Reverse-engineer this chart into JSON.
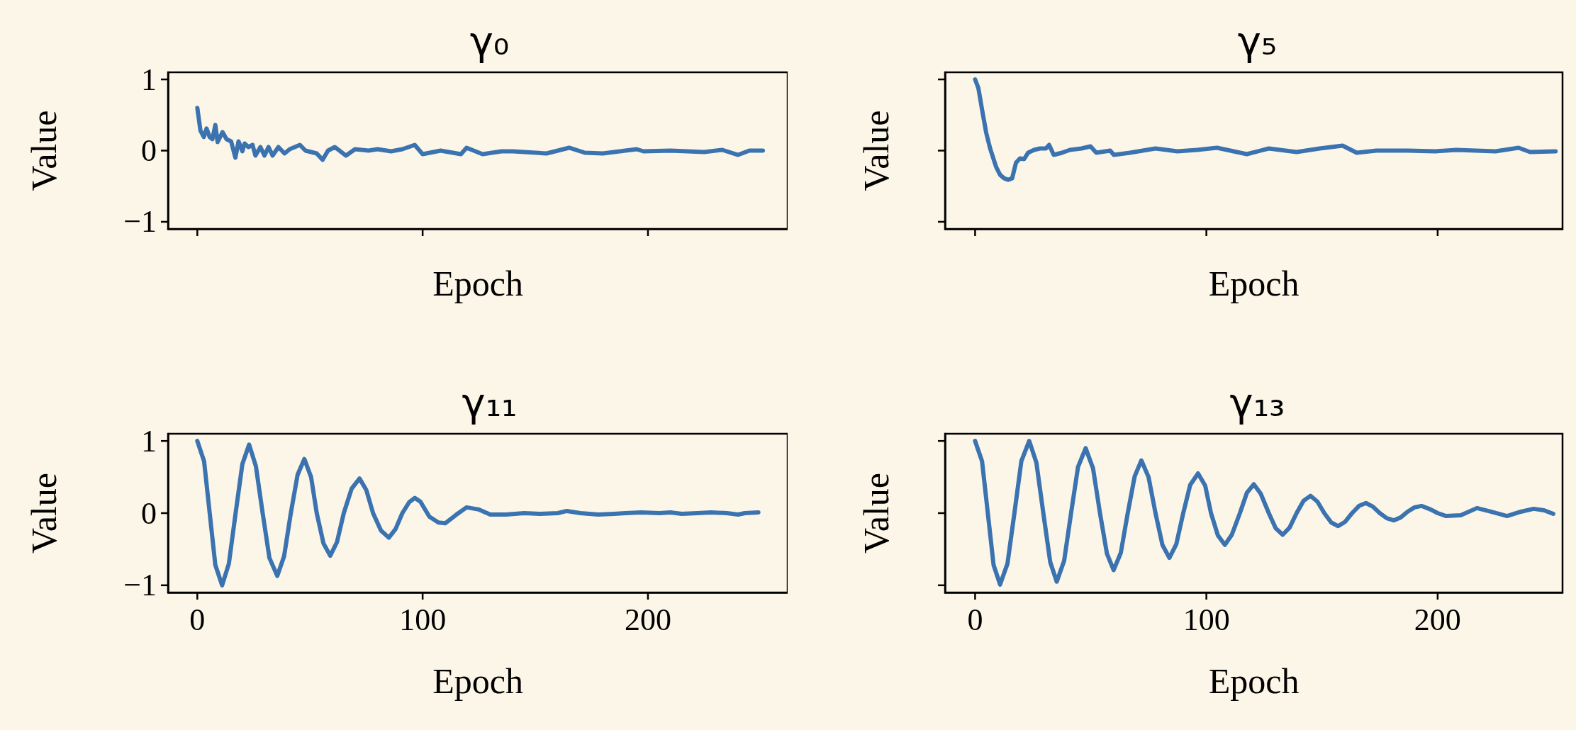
{
  "chart_data": [
    {
      "type": "line",
      "title": "γ₀",
      "xlabel": "Epoch",
      "ylabel": "Value",
      "xlim": [
        -13,
        262
      ],
      "ylim": [
        -1.1,
        1.1
      ],
      "xticks": [
        {
          "value": 0,
          "label": null
        },
        {
          "value": 100,
          "label": null
        },
        {
          "value": 200,
          "label": null
        }
      ],
      "yticks": [
        {
          "value": -1,
          "label": "−1"
        },
        {
          "value": 0,
          "label": "0"
        },
        {
          "value": 1,
          "label": "1"
        }
      ],
      "tick_labels": "y",
      "series": [
        {
          "color": "#3b73b0",
          "x": [
            0,
            1.4,
            2.9,
            4.1,
            5.5,
            6.7,
            8,
            9,
            11.2,
            13,
            15,
            16.9,
            18.3,
            20,
            21,
            22.7,
            24.5,
            25.8,
            28,
            29.8,
            31.6,
            33.4,
            36,
            38.7,
            41,
            45.5,
            48,
            53,
            55.6,
            58,
            61,
            66,
            70,
            76,
            80,
            86,
            91,
            96.5,
            100,
            108,
            117,
            119.5,
            126.6,
            135,
            140,
            155,
            165,
            172,
            180,
            195,
            198,
            210,
            225,
            233,
            240,
            245,
            251
          ],
          "values": [
            0.6,
            0.28,
            0.19,
            0.31,
            0.19,
            0.16,
            0.36,
            0.12,
            0.26,
            0.16,
            0.13,
            -0.1,
            0.13,
            -0.01,
            0.1,
            0.05,
            0.08,
            -0.07,
            0.05,
            -0.07,
            0.05,
            -0.07,
            0.05,
            -0.04,
            0.02,
            0.08,
            0.0,
            -0.04,
            -0.13,
            0.0,
            0.05,
            -0.07,
            0.02,
            0.0,
            0.02,
            -0.01,
            0.02,
            0.08,
            -0.05,
            0.0,
            -0.05,
            0.04,
            -0.05,
            -0.01,
            -0.01,
            -0.04,
            0.04,
            -0.03,
            -0.04,
            0.02,
            -0.01,
            0.0,
            -0.02,
            0.01,
            -0.06,
            0.0,
            0.0
          ]
        }
      ]
    },
    {
      "type": "line",
      "title": "γ₅",
      "xlabel": "Epoch",
      "ylabel": "Value",
      "xlim": [
        -13,
        254
      ],
      "ylim": [
        -1.1,
        1.1
      ],
      "xticks": [
        {
          "value": 0,
          "label": null
        },
        {
          "value": 100,
          "label": null
        },
        {
          "value": 200,
          "label": null
        }
      ],
      "yticks": [
        {
          "value": -1,
          "label": null
        },
        {
          "value": 0,
          "label": null
        },
        {
          "value": 1,
          "label": null
        }
      ],
      "tick_labels": false,
      "series": [
        {
          "color": "#3b73b0",
          "x": [
            0,
            1.4,
            3.1,
            4.8,
            6.5,
            9.1,
            10.8,
            12.6,
            14.3,
            16,
            17.7,
            19.4,
            21.2,
            22.9,
            25.5,
            28,
            30.6,
            32,
            34,
            37.6,
            41,
            46,
            49.9,
            52.4,
            58.4,
            60,
            67,
            78,
            87.5,
            96,
            104.6,
            117.5,
            127,
            139,
            149,
            158.9,
            165,
            173.5,
            187,
            199,
            208,
            225,
            235,
            240,
            251
          ],
          "values": [
            1.0,
            0.88,
            0.56,
            0.25,
            0.03,
            -0.23,
            -0.34,
            -0.39,
            -0.41,
            -0.39,
            -0.17,
            -0.11,
            -0.12,
            -0.03,
            0.01,
            0.03,
            0.03,
            0.08,
            -0.06,
            -0.03,
            0.01,
            0.03,
            0.06,
            -0.03,
            0.0,
            -0.06,
            -0.03,
            0.03,
            -0.01,
            0.01,
            0.04,
            -0.05,
            0.03,
            -0.02,
            0.03,
            0.07,
            -0.03,
            0.0,
            0.0,
            -0.01,
            0.01,
            -0.01,
            0.04,
            -0.02,
            -0.01
          ]
        }
      ]
    },
    {
      "type": "line",
      "title": "γ₁₁",
      "xlabel": "Epoch",
      "ylabel": "Value",
      "xlim": [
        -13,
        262
      ],
      "ylim": [
        -1.1,
        1.1
      ],
      "xticks": [
        0,
        100,
        200
      ],
      "yticks": [
        {
          "value": -1,
          "label": "−1"
        },
        {
          "value": 0,
          "label": "0"
        },
        {
          "value": 1,
          "label": "1"
        }
      ],
      "series": [
        {
          "color": "#3b73b0",
          "x": [
            0,
            3,
            5.5,
            8,
            11,
            14,
            17,
            20,
            23,
            26,
            29,
            32,
            35.5,
            38.5,
            41.5,
            44.5,
            47.5,
            50.5,
            53,
            56,
            59,
            62,
            65,
            68.5,
            72,
            75,
            78,
            81.5,
            85,
            88,
            91,
            94,
            96.5,
            99,
            103,
            107,
            110,
            115,
            119.5,
            125,
            130,
            137,
            145,
            152,
            160,
            164,
            170,
            178,
            185,
            190,
            197,
            205,
            210,
            215,
            222,
            228,
            235,
            240,
            243,
            249
          ],
          "values": [
            1.0,
            0.72,
            0.0,
            -0.72,
            -1.0,
            -0.7,
            0.0,
            0.68,
            0.95,
            0.65,
            0.0,
            -0.62,
            -0.87,
            -0.6,
            0.0,
            0.53,
            0.75,
            0.5,
            0.0,
            -0.42,
            -0.59,
            -0.4,
            0.0,
            0.34,
            0.48,
            0.32,
            0.0,
            -0.24,
            -0.34,
            -0.22,
            0.0,
            0.15,
            0.21,
            0.16,
            -0.05,
            -0.13,
            -0.14,
            -0.02,
            0.08,
            0.05,
            -0.02,
            -0.02,
            0.0,
            -0.01,
            0.0,
            0.03,
            0.0,
            -0.02,
            -0.01,
            0.0,
            0.01,
            0.0,
            0.01,
            -0.01,
            0.0,
            0.01,
            0.0,
            -0.02,
            0.0,
            0.01
          ]
        }
      ]
    },
    {
      "type": "line",
      "title": "γ₁₃",
      "xlabel": "Epoch",
      "ylabel": "Value",
      "xlim": [
        -13,
        254
      ],
      "ylim": [
        -1.1,
        1.1
      ],
      "xticks": [
        0,
        100,
        200
      ],
      "yticks": [
        {
          "value": -1,
          "label": null
        },
        {
          "value": 0,
          "label": null
        },
        {
          "value": 1,
          "label": null
        }
      ],
      "tick_labels": "x",
      "series": [
        {
          "color": "#3b73b0",
          "x": [
            0,
            3,
            5.5,
            8,
            10.8,
            14,
            17,
            20,
            23.4,
            26.5,
            29.5,
            32.5,
            35.3,
            38.5,
            41.5,
            44.5,
            47.8,
            51,
            54,
            57,
            59.9,
            63,
            66,
            69,
            71.9,
            75,
            78,
            81,
            84,
            87,
            90,
            93,
            96.4,
            99.5,
            102,
            105,
            108,
            111,
            114.5,
            117.5,
            120.5,
            123.5,
            127,
            130,
            133,
            136,
            139,
            142,
            145,
            148,
            151,
            154,
            157,
            160,
            163,
            166,
            169,
            172,
            175,
            178,
            181,
            184,
            187,
            190,
            193,
            197,
            200,
            203.6,
            210,
            217,
            223,
            230,
            236,
            241.5,
            246,
            250
          ],
          "values": [
            1.0,
            0.72,
            0.0,
            -0.72,
            -0.99,
            -0.7,
            0.0,
            0.72,
            1.0,
            0.7,
            0.0,
            -0.68,
            -0.95,
            -0.66,
            0.0,
            0.64,
            0.9,
            0.62,
            0.0,
            -0.56,
            -0.79,
            -0.55,
            0.0,
            0.51,
            0.73,
            0.5,
            0.0,
            -0.44,
            -0.62,
            -0.43,
            0.0,
            0.39,
            0.55,
            0.38,
            0.0,
            -0.31,
            -0.44,
            -0.3,
            0.0,
            0.28,
            0.4,
            0.27,
            0.0,
            -0.21,
            -0.3,
            -0.2,
            0.0,
            0.17,
            0.24,
            0.16,
            0.0,
            -0.13,
            -0.18,
            -0.12,
            0.0,
            0.1,
            0.14,
            0.09,
            0.0,
            -0.07,
            -0.1,
            -0.06,
            0.02,
            0.08,
            0.1,
            0.05,
            0.0,
            -0.04,
            -0.03,
            0.07,
            0.02,
            -0.04,
            0.02,
            0.06,
            0.04,
            -0.01
          ]
        }
      ]
    }
  ]
}
